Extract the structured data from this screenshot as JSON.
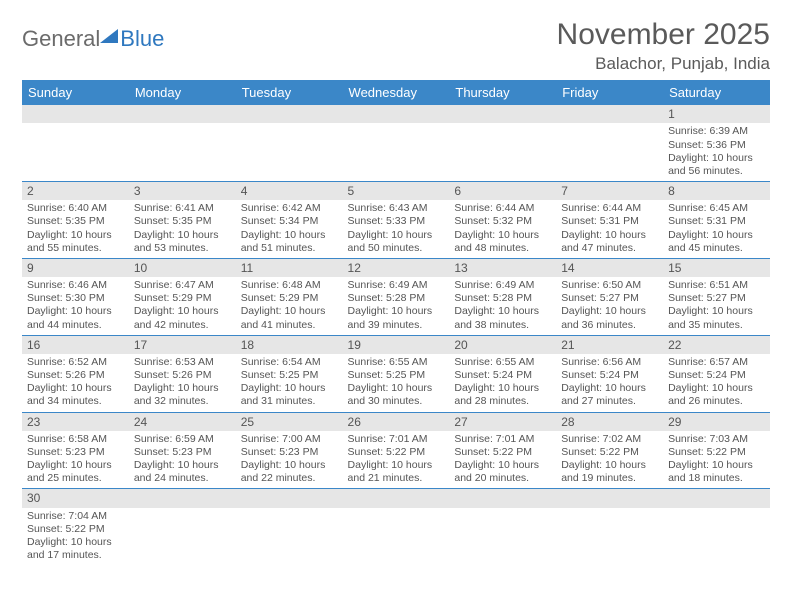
{
  "logo": {
    "text1": "General",
    "text2": "Blue"
  },
  "title": "November 2025",
  "location": "Balachor, Punjab, India",
  "colors": {
    "header_bg": "#3b87c8",
    "header_text": "#ffffff",
    "band_bg": "#e6e6e6",
    "rule": "#3b87c8",
    "text": "#555555",
    "logo_gray": "#6b6b6b",
    "logo_blue": "#2f78bf"
  },
  "weekdays": [
    "Sunday",
    "Monday",
    "Tuesday",
    "Wednesday",
    "Thursday",
    "Friday",
    "Saturday"
  ],
  "weeks": [
    [
      null,
      null,
      null,
      null,
      null,
      null,
      {
        "n": "1",
        "sunrise": "6:39 AM",
        "sunset": "5:36 PM",
        "daylight": "10 hours and 56 minutes."
      }
    ],
    [
      {
        "n": "2",
        "sunrise": "6:40 AM",
        "sunset": "5:35 PM",
        "daylight": "10 hours and 55 minutes."
      },
      {
        "n": "3",
        "sunrise": "6:41 AM",
        "sunset": "5:35 PM",
        "daylight": "10 hours and 53 minutes."
      },
      {
        "n": "4",
        "sunrise": "6:42 AM",
        "sunset": "5:34 PM",
        "daylight": "10 hours and 51 minutes."
      },
      {
        "n": "5",
        "sunrise": "6:43 AM",
        "sunset": "5:33 PM",
        "daylight": "10 hours and 50 minutes."
      },
      {
        "n": "6",
        "sunrise": "6:44 AM",
        "sunset": "5:32 PM",
        "daylight": "10 hours and 48 minutes."
      },
      {
        "n": "7",
        "sunrise": "6:44 AM",
        "sunset": "5:31 PM",
        "daylight": "10 hours and 47 minutes."
      },
      {
        "n": "8",
        "sunrise": "6:45 AM",
        "sunset": "5:31 PM",
        "daylight": "10 hours and 45 minutes."
      }
    ],
    [
      {
        "n": "9",
        "sunrise": "6:46 AM",
        "sunset": "5:30 PM",
        "daylight": "10 hours and 44 minutes."
      },
      {
        "n": "10",
        "sunrise": "6:47 AM",
        "sunset": "5:29 PM",
        "daylight": "10 hours and 42 minutes."
      },
      {
        "n": "11",
        "sunrise": "6:48 AM",
        "sunset": "5:29 PM",
        "daylight": "10 hours and 41 minutes."
      },
      {
        "n": "12",
        "sunrise": "6:49 AM",
        "sunset": "5:28 PM",
        "daylight": "10 hours and 39 minutes."
      },
      {
        "n": "13",
        "sunrise": "6:49 AM",
        "sunset": "5:28 PM",
        "daylight": "10 hours and 38 minutes."
      },
      {
        "n": "14",
        "sunrise": "6:50 AM",
        "sunset": "5:27 PM",
        "daylight": "10 hours and 36 minutes."
      },
      {
        "n": "15",
        "sunrise": "6:51 AM",
        "sunset": "5:27 PM",
        "daylight": "10 hours and 35 minutes."
      }
    ],
    [
      {
        "n": "16",
        "sunrise": "6:52 AM",
        "sunset": "5:26 PM",
        "daylight": "10 hours and 34 minutes."
      },
      {
        "n": "17",
        "sunrise": "6:53 AM",
        "sunset": "5:26 PM",
        "daylight": "10 hours and 32 minutes."
      },
      {
        "n": "18",
        "sunrise": "6:54 AM",
        "sunset": "5:25 PM",
        "daylight": "10 hours and 31 minutes."
      },
      {
        "n": "19",
        "sunrise": "6:55 AM",
        "sunset": "5:25 PM",
        "daylight": "10 hours and 30 minutes."
      },
      {
        "n": "20",
        "sunrise": "6:55 AM",
        "sunset": "5:24 PM",
        "daylight": "10 hours and 28 minutes."
      },
      {
        "n": "21",
        "sunrise": "6:56 AM",
        "sunset": "5:24 PM",
        "daylight": "10 hours and 27 minutes."
      },
      {
        "n": "22",
        "sunrise": "6:57 AM",
        "sunset": "5:24 PM",
        "daylight": "10 hours and 26 minutes."
      }
    ],
    [
      {
        "n": "23",
        "sunrise": "6:58 AM",
        "sunset": "5:23 PM",
        "daylight": "10 hours and 25 minutes."
      },
      {
        "n": "24",
        "sunrise": "6:59 AM",
        "sunset": "5:23 PM",
        "daylight": "10 hours and 24 minutes."
      },
      {
        "n": "25",
        "sunrise": "7:00 AM",
        "sunset": "5:23 PM",
        "daylight": "10 hours and 22 minutes."
      },
      {
        "n": "26",
        "sunrise": "7:01 AM",
        "sunset": "5:22 PM",
        "daylight": "10 hours and 21 minutes."
      },
      {
        "n": "27",
        "sunrise": "7:01 AM",
        "sunset": "5:22 PM",
        "daylight": "10 hours and 20 minutes."
      },
      {
        "n": "28",
        "sunrise": "7:02 AM",
        "sunset": "5:22 PM",
        "daylight": "10 hours and 19 minutes."
      },
      {
        "n": "29",
        "sunrise": "7:03 AM",
        "sunset": "5:22 PM",
        "daylight": "10 hours and 18 minutes."
      }
    ],
    [
      {
        "n": "30",
        "sunrise": "7:04 AM",
        "sunset": "5:22 PM",
        "daylight": "10 hours and 17 minutes."
      },
      null,
      null,
      null,
      null,
      null,
      null
    ]
  ],
  "labels": {
    "sunrise": "Sunrise: ",
    "sunset": "Sunset: ",
    "daylight": "Daylight: "
  }
}
